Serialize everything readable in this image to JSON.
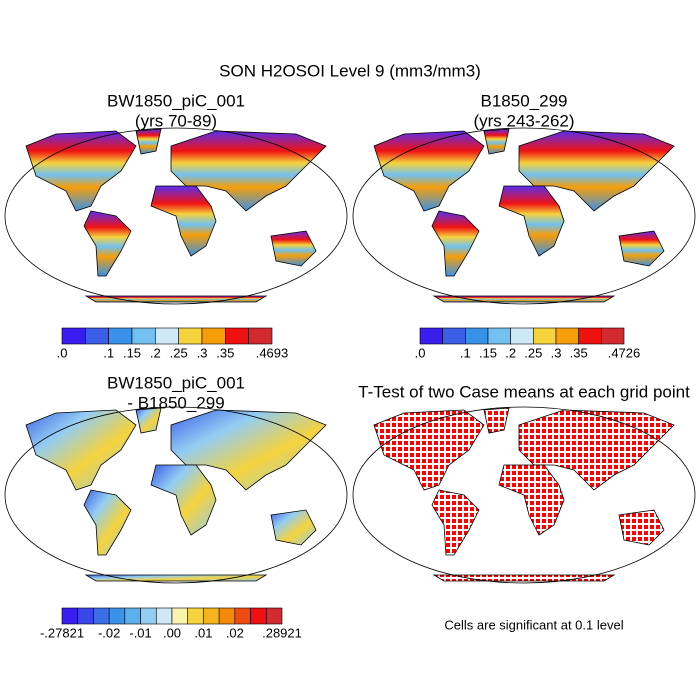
{
  "title": "SON H2OSOI Level 9 (mm3/mm3)",
  "panels": [
    {
      "title": [
        "BW1850_piC_001",
        "(yrs 70-89)"
      ],
      "colorbar": {
        "colors": [
          "#3a1ef0",
          "#3b5fe6",
          "#3a92e8",
          "#71c0ef",
          "#cfe8f8",
          "#f5d33c",
          "#f59e0a",
          "#f01212",
          "#d22a30"
        ],
        "labels": [
          ".0",
          null,
          ".1",
          ".15",
          ".2",
          ".25",
          ".3",
          ".35",
          null,
          ".4693"
        ]
      }
    },
    {
      "title": [
        "B1850_299",
        "(yrs 243-262)"
      ],
      "colorbar": {
        "colors": [
          "#3a1ef0",
          "#3b5fe6",
          "#3a92e8",
          "#71c0ef",
          "#cfe8f8",
          "#f5d33c",
          "#f59e0a",
          "#f01212",
          "#d22a30"
        ],
        "labels": [
          ".0",
          null,
          ".1",
          ".15",
          ".2",
          ".25",
          ".3",
          ".35",
          null,
          ".4726"
        ]
      }
    },
    {
      "title": [
        "BW1850_piC_001",
        "- B1850_299"
      ],
      "colorbar": {
        "colors": [
          "#3a1ef0",
          "#3b45e8",
          "#3b6fe6",
          "#3a92e8",
          "#5cb0ee",
          "#93cdf3",
          "#cfe8f8",
          "#fbf3b0",
          "#f5d33c",
          "#f5b41e",
          "#f58a0a",
          "#f04a10",
          "#f01212",
          "#d22a30"
        ],
        "labels": [
          "-.27821",
          null,
          null,
          "-.02",
          null,
          "-.01",
          null,
          ".00",
          null,
          ".01",
          null,
          ".02",
          null,
          null,
          ".28921"
        ]
      }
    },
    {
      "title": [
        "T-Test of two Case means at each grid point"
      ],
      "note": "Cells are significant at 0.1 level"
    }
  ]
}
